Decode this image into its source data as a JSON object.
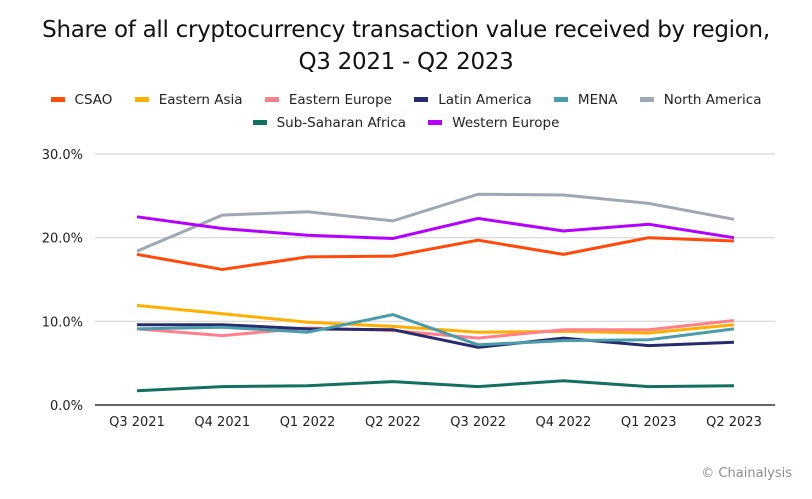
{
  "chart_data": {
    "type": "line",
    "title_line1": "Share of all cryptocurrency transaction value received by region,",
    "title_line2": "Q3 2021 - Q2 2023",
    "xlabel": "",
    "ylabel": "",
    "ylim": [
      0,
      30
    ],
    "yticks": [
      0,
      10,
      20,
      30
    ],
    "ytick_labels": [
      "0.0%",
      "10.0%",
      "20.0%",
      "30.0%"
    ],
    "grid": true,
    "legend_placement": "top-center",
    "categories": [
      "Q3 2021",
      "Q4 2021",
      "Q1 2022",
      "Q2 2022",
      "Q3 2022",
      "Q4 2022",
      "Q1 2023",
      "Q2 2023"
    ],
    "series": [
      {
        "name": "CSAO",
        "color": "#ff4a0a",
        "values": [
          18.0,
          16.2,
          17.7,
          17.8,
          19.7,
          18.0,
          20.0,
          19.6
        ]
      },
      {
        "name": "Eastern Asia",
        "color": "#ffaf00",
        "values": [
          11.9,
          10.9,
          9.9,
          9.4,
          8.7,
          8.8,
          8.6,
          9.6
        ]
      },
      {
        "name": "Eastern Europe",
        "color": "#ff7f8a",
        "values": [
          9.1,
          8.3,
          9.2,
          8.9,
          8.0,
          9.0,
          9.0,
          10.1
        ]
      },
      {
        "name": "Latin America",
        "color": "#262c6e",
        "values": [
          9.6,
          9.6,
          9.1,
          9.0,
          6.9,
          8.0,
          7.1,
          7.5
        ]
      },
      {
        "name": "MENA",
        "color": "#4a9caa",
        "values": [
          9.1,
          9.3,
          8.7,
          10.8,
          7.2,
          7.7,
          7.8,
          9.1
        ]
      },
      {
        "name": "North America",
        "color": "#9ea7b3",
        "values": [
          18.4,
          22.7,
          23.1,
          22.0,
          25.2,
          25.1,
          24.1,
          22.2
        ]
      },
      {
        "name": "Sub-Saharan Africa",
        "color": "#127060",
        "values": [
          1.7,
          2.2,
          2.3,
          2.8,
          2.2,
          2.9,
          2.2,
          2.3
        ]
      },
      {
        "name": "Western Europe",
        "color": "#b300ff",
        "values": [
          22.5,
          21.1,
          20.3,
          19.9,
          22.3,
          20.8,
          21.6,
          20.0
        ]
      }
    ]
  },
  "legend": {
    "row1": [
      "CSAO",
      "Eastern Asia",
      "Eastern Europe",
      "Latin America",
      "MENA",
      "North America"
    ],
    "row2": [
      "Sub-Saharan Africa",
      "Western Europe"
    ]
  },
  "credit": "© Chainalysis"
}
